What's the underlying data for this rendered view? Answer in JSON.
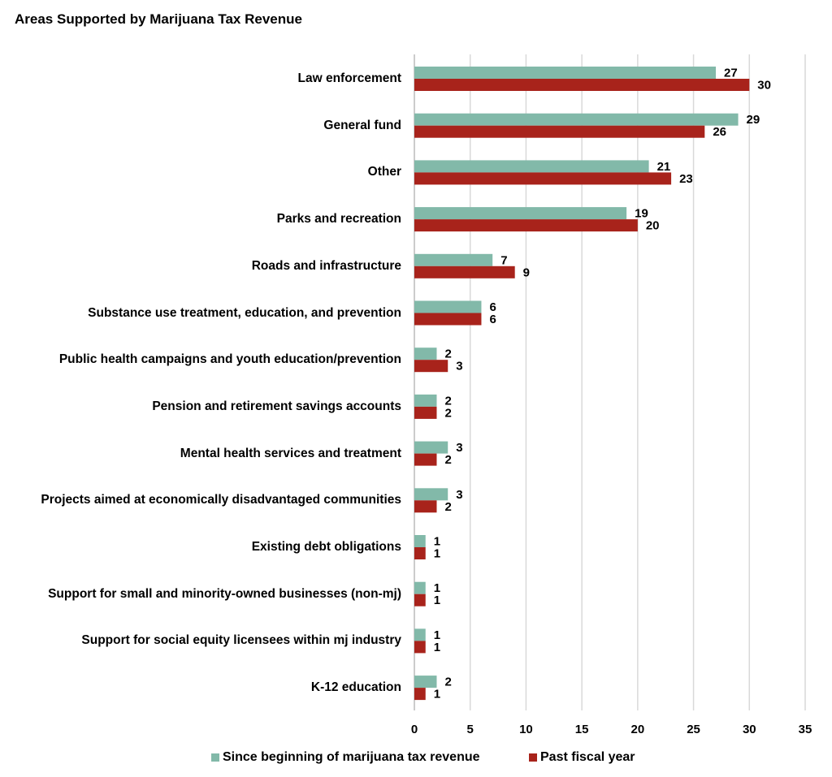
{
  "chart_data": {
    "type": "bar",
    "orientation": "horizontal",
    "title": "Areas Supported by Marijuana Tax Revenue",
    "categories": [
      "Law enforcement",
      "General fund",
      "Other",
      "Parks and recreation",
      "Roads and infrastructure",
      "Substance use treatment, education, and prevention",
      "Public health campaigns and youth education/prevention",
      "Pension and retirement savings accounts",
      "Mental health services and treatment",
      "Projects aimed at economically disadvantaged communities",
      "Existing debt obligations",
      "Support for small and minority-owned businesses (non-mj)",
      "Support for social equity licensees within mj industry",
      "K-12 education"
    ],
    "series": [
      {
        "name": "Since beginning of marijuana tax revenue",
        "color": "#82b9a9",
        "values": [
          27,
          29,
          21,
          19,
          7,
          6,
          2,
          2,
          3,
          3,
          1,
          1,
          1,
          2
        ]
      },
      {
        "name": "Past fiscal year",
        "color": "#a8231b",
        "values": [
          30,
          26,
          23,
          20,
          9,
          6,
          3,
          2,
          2,
          2,
          1,
          1,
          1,
          1
        ]
      }
    ],
    "xlim": [
      0,
      35
    ],
    "xticks": [
      "0",
      "5",
      "10",
      "15",
      "20",
      "25",
      "30",
      "35"
    ],
    "grid": true,
    "data_labels": true,
    "legend": "bottom"
  }
}
